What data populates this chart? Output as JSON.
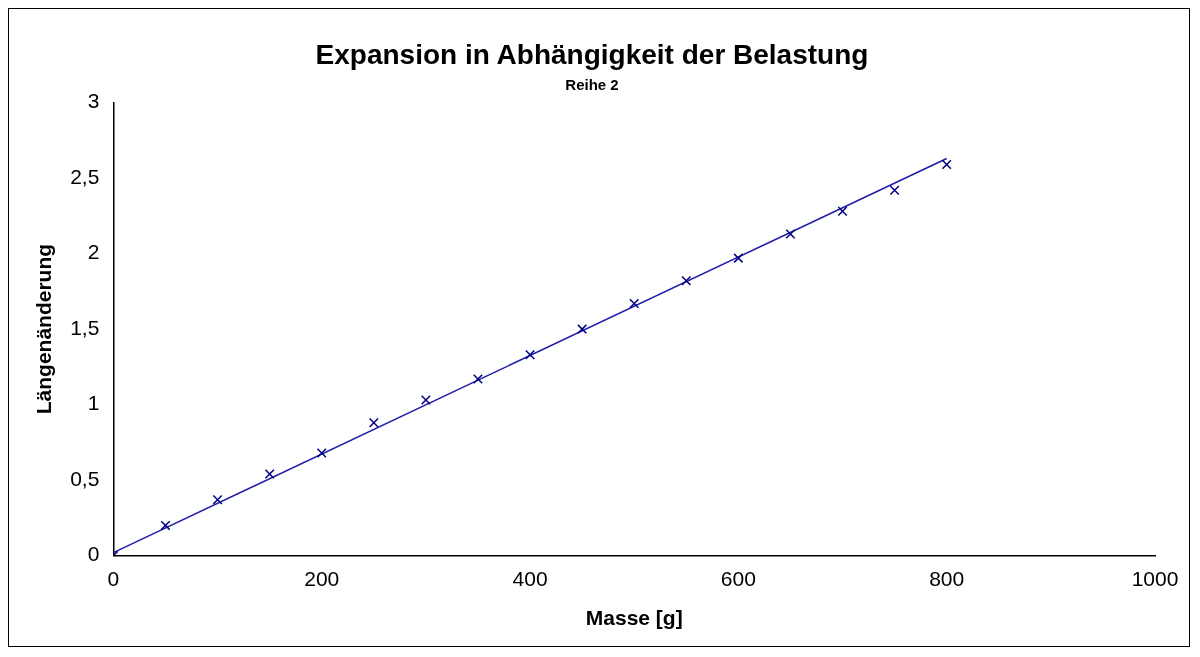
{
  "chart_data": {
    "type": "scatter",
    "title": "Expansion in Abhängigkeit der Belastung",
    "subtitle": "Reihe 2",
    "xlabel": "Masse [g]",
    "ylabel": "Längenänderung",
    "xlim": [
      0,
      1000
    ],
    "xticks": [
      0,
      200,
      400,
      600,
      800,
      1000
    ],
    "ylim": [
      0,
      3
    ],
    "yticks": [
      0,
      {
        "value": 0.5,
        "label": "0,5"
      },
      1,
      {
        "value": 1.5,
        "label": "1,5"
      },
      2,
      {
        "value": 2.5,
        "label": "2,5"
      },
      3
    ],
    "grid": false,
    "legend": false,
    "series": [
      {
        "type": "scatter",
        "marker": "cross",
        "color": "#000080",
        "x": [
          0,
          50,
          100,
          150,
          200,
          250,
          300,
          350,
          400,
          450,
          500,
          550,
          600,
          650,
          700,
          750,
          800
        ],
        "values": [
          0,
          0.2,
          0.37,
          0.54,
          0.68,
          0.88,
          1.03,
          1.17,
          1.33,
          1.5,
          1.67,
          1.82,
          1.97,
          2.13,
          2.28,
          2.42,
          2.59
        ]
      },
      {
        "type": "line",
        "color": "#1c1caa",
        "x": [
          0,
          800
        ],
        "values": [
          0.02,
          2.63
        ]
      }
    ]
  }
}
